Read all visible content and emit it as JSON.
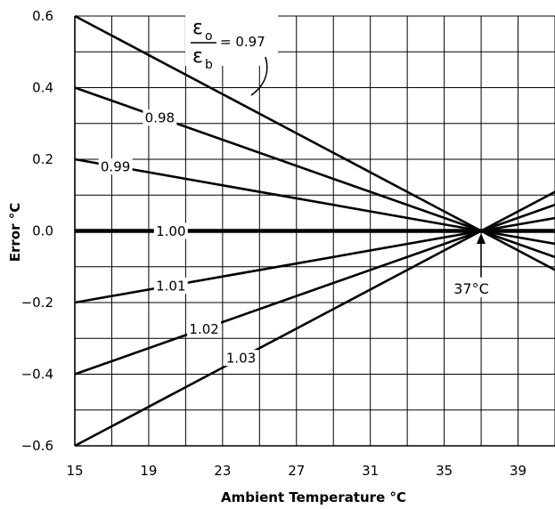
{
  "chart_data": {
    "type": "line",
    "xlabel": "Ambient Temperature °C",
    "ylabel": "Error °C",
    "xlim": [
      15,
      41
    ],
    "ylim": [
      -0.6,
      0.6
    ],
    "x_ticks": [
      "15",
      "19",
      "23",
      "27",
      "31",
      "35",
      "39"
    ],
    "y_ticks": [
      "0.6",
      "0.4",
      "0.2",
      "0.0",
      "−0.2",
      "−0.4",
      "−0.6"
    ],
    "grid": true,
    "ratio_label": {
      "numerator_symbol": "ε",
      "numerator_sub": "o",
      "denominator_symbol": "ε",
      "denominator_sub": "b",
      "equals_value": "= 0.97"
    },
    "series": [
      {
        "name": "0.97",
        "x": [
          15,
          37,
          41
        ],
        "y": [
          0.6,
          0.0,
          -0.109
        ]
      },
      {
        "name": "0.98",
        "x": [
          15,
          37,
          41
        ],
        "y": [
          0.4,
          0.0,
          -0.073
        ]
      },
      {
        "name": "0.99",
        "x": [
          15,
          37,
          41
        ],
        "y": [
          0.2,
          0.0,
          -0.036
        ]
      },
      {
        "name": "1.00",
        "x": [
          15,
          37,
          41
        ],
        "y": [
          0.0,
          0.0,
          0.0
        ]
      },
      {
        "name": "1.01",
        "x": [
          15,
          37,
          41
        ],
        "y": [
          -0.2,
          0.0,
          0.036
        ]
      },
      {
        "name": "1.02",
        "x": [
          15,
          37,
          41
        ],
        "y": [
          -0.4,
          0.0,
          0.073
        ]
      },
      {
        "name": "1.03",
        "x": [
          15,
          37,
          41
        ],
        "y": [
          -0.6,
          0.0,
          0.109
        ]
      }
    ],
    "annotations": [
      {
        "text": "37°C",
        "x": 37,
        "y": 0.0
      }
    ]
  }
}
